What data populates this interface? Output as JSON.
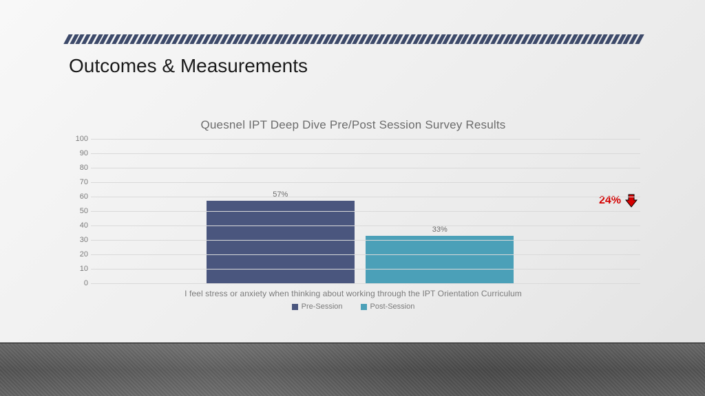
{
  "slide": {
    "heading": "Outcomes & Measurements",
    "heading_fontsize": 28,
    "heading_color": "#1a1a1a",
    "top_stripe": {
      "color": "#3d4a6a",
      "count": 96,
      "skew_deg": -28
    },
    "background": "linear-gradient light-gray wall with dark concrete floor strip"
  },
  "chart": {
    "type": "bar",
    "title": "Quesnel IPT Deep Dive Pre/Post Session Survey Results",
    "title_fontsize": 17,
    "title_color": "#6b6b6b",
    "x_category_label": "I feel stress or anxiety when thinking about working through the IPT Orientation Curriculum",
    "x_label_fontsize": 12,
    "x_label_color": "#7a7a7a",
    "series": [
      {
        "name": "Pre-Session",
        "value": 57,
        "display_label": "57%",
        "color": "#4a567e",
        "bar_left_pct": 21,
        "bar_width_pct": 27
      },
      {
        "name": "Post-Session",
        "value": 33,
        "display_label": "33%",
        "color": "#4ba0b8",
        "bar_left_pct": 50,
        "bar_width_pct": 27
      }
    ],
    "y_axis": {
      "min": 0,
      "max": 100,
      "tick_step": 10,
      "tick_fontsize": 11,
      "tick_color": "#7a7a7a",
      "gridline_color": "#d9d9d9"
    },
    "legend": {
      "items": [
        {
          "label": "Pre-Session",
          "color": "#4a567e"
        },
        {
          "label": "Post-Session",
          "color": "#4ba0b8"
        }
      ],
      "fontsize": 11,
      "color": "#7a7a7a"
    },
    "callout": {
      "text": "24%",
      "text_color": "#d40000",
      "text_fontsize": 16,
      "arrow": {
        "direction": "down",
        "fill": "#d40000",
        "stroke": "#000000"
      },
      "position_note": "right of bars, aligned near 57% bar top"
    }
  }
}
